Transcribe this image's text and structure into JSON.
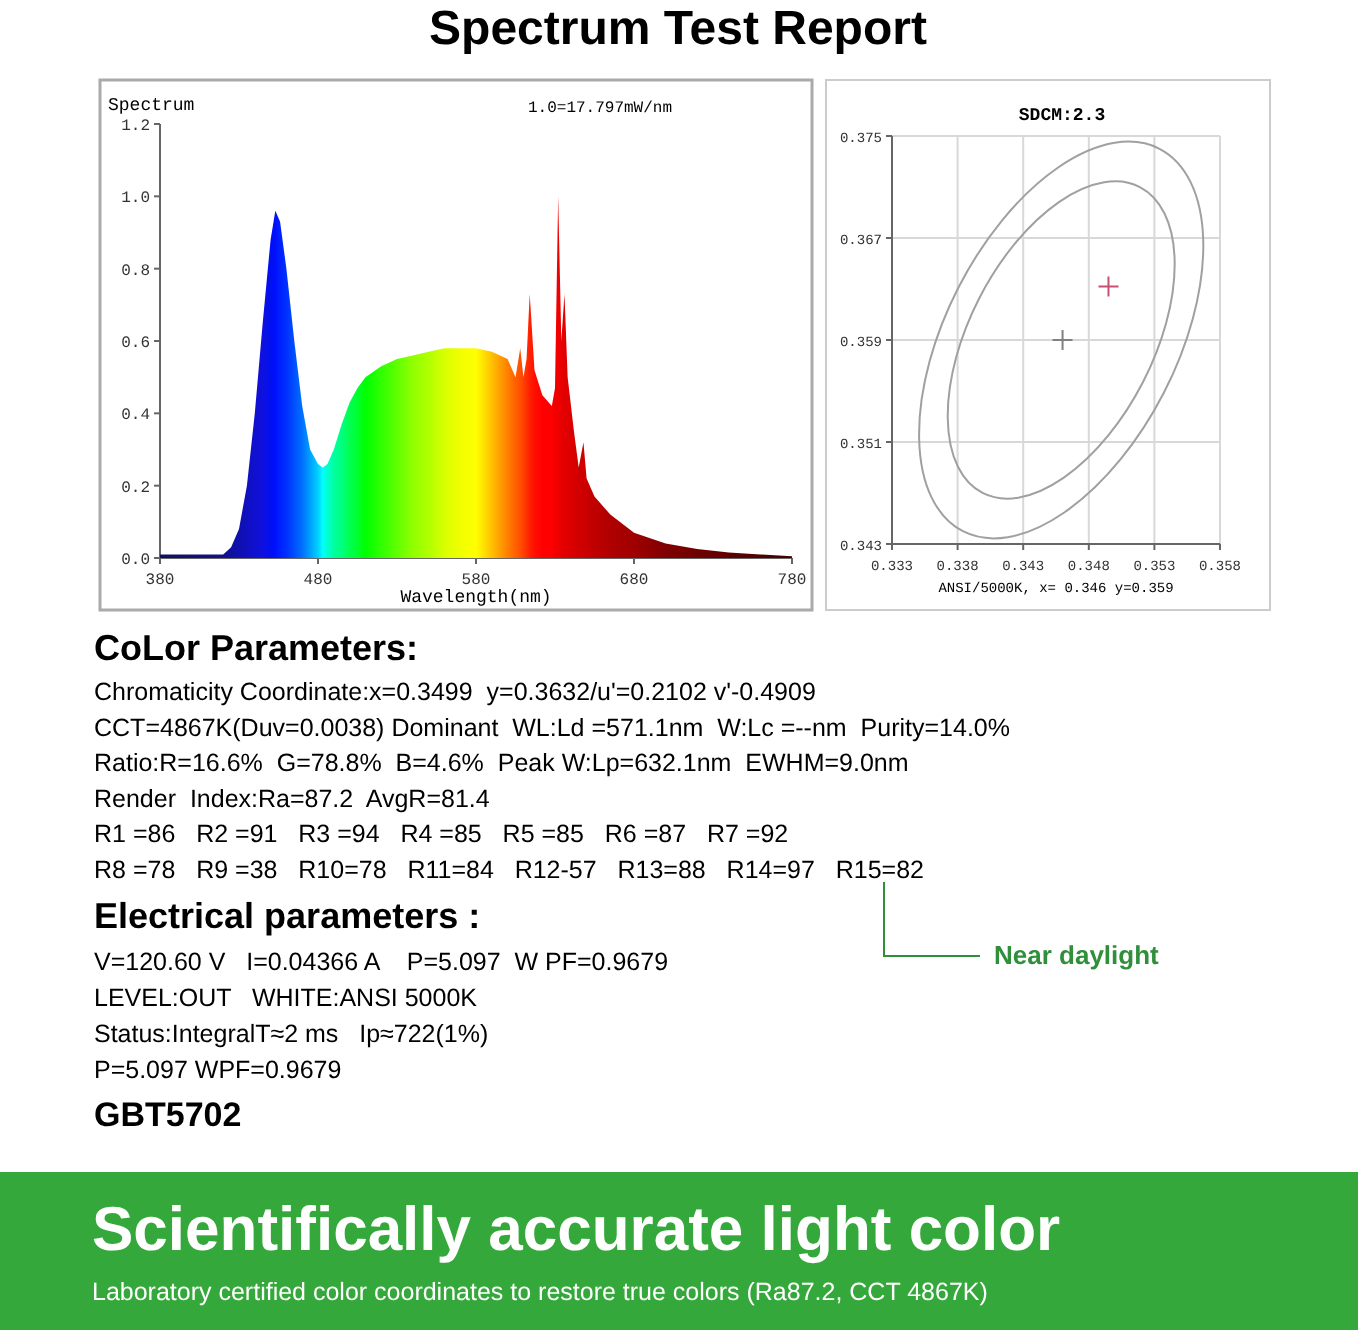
{
  "chart_data": [
    {
      "type": "area",
      "title": "Spectrum Test Report",
      "ylabel": "Spectrum",
      "xlabel": "Wavelength(nm)",
      "annotations": [
        "1.0=17.797mW/nm"
      ],
      "xlim": [
        380,
        780
      ],
      "ylim": [
        0,
        1.2
      ],
      "xticks": [
        380,
        480,
        580,
        680,
        780
      ],
      "yticks": [
        {
          "value": 0,
          "label": "0.0"
        },
        0.2,
        0.4,
        0.6,
        0.8,
        {
          "value": 1,
          "label": "1.0"
        },
        1.2
      ],
      "grid": false,
      "x": [
        380,
        400,
        420,
        425,
        430,
        435,
        440,
        445,
        450,
        453,
        456,
        460,
        465,
        470,
        475,
        480,
        483,
        486,
        490,
        495,
        500,
        505,
        510,
        520,
        530,
        540,
        550,
        560,
        570,
        580,
        590,
        600,
        605,
        608,
        610,
        612,
        614,
        617,
        622,
        628,
        630,
        632,
        634,
        636,
        638,
        642,
        645,
        648,
        650,
        655,
        665,
        680,
        700,
        720,
        740,
        760,
        780
      ],
      "series": [
        {
          "values": [
            0.01,
            0.01,
            0.01,
            0.03,
            0.08,
            0.2,
            0.4,
            0.65,
            0.88,
            0.96,
            0.93,
            0.8,
            0.6,
            0.42,
            0.3,
            0.26,
            0.25,
            0.26,
            0.3,
            0.37,
            0.43,
            0.47,
            0.5,
            0.53,
            0.55,
            0.56,
            0.57,
            0.58,
            0.58,
            0.58,
            0.57,
            0.55,
            0.5,
            0.58,
            0.5,
            0.55,
            0.73,
            0.52,
            0.45,
            0.42,
            0.47,
            1.0,
            0.6,
            0.73,
            0.5,
            0.35,
            0.25,
            0.32,
            0.22,
            0.17,
            0.12,
            0.07,
            0.04,
            0.025,
            0.015,
            0.01,
            0.005
          ],
          "colors": [
            "#101060",
            "#101070",
            "#101090",
            "#1010a0",
            "#1010b0",
            "#1010c0",
            "#1010d0",
            "#1010e0",
            "#0010f0",
            "#0010ff",
            "#0020ff",
            "#0030ff",
            "#0050ff",
            "#0070ff",
            "#00a0ff",
            "#00d0ff",
            "#00ffff",
            "#00ffd0",
            "#00ffa0",
            "#00ff80",
            "#00ff50",
            "#00ff30",
            "#00ff00",
            "#30ff00",
            "#60ff00",
            "#90ff00",
            "#b0ff00",
            "#d8ff00",
            "#f0ff00",
            "#ffff00",
            "#ffc000",
            "#ff8000",
            "#ff6000",
            "#ff5000",
            "#ff4000",
            "#ff3000",
            "#ff2000",
            "#ff1000",
            "#ff0000",
            "#ff0000",
            "#f00000",
            "#f00000",
            "#e80000",
            "#e00000",
            "#e00000",
            "#d80000",
            "#d00000",
            "#d00000",
            "#c80000",
            "#c00000",
            "#b00000",
            "#a00000",
            "#800000",
            "#700000",
            "#600000",
            "#500000",
            "#400000"
          ]
        }
      ]
    },
    {
      "type": "scatter",
      "title": "SDCM:2.3",
      "xlabel": "ANSI/5000K, x= 0.346 y=0.359",
      "xlim": [
        0.333,
        0.358
      ],
      "ylim": [
        0.343,
        0.375
      ],
      "xticks": [
        0.333,
        0.338,
        0.343,
        0.348,
        0.353,
        0.358
      ],
      "yticks": [
        0.343,
        0.351,
        0.359,
        0.367,
        0.375
      ],
      "grid": true,
      "series": [
        {
          "marker": "cross",
          "color": "#808080",
          "x": [
            0.346
          ],
          "values": [
            0.359
          ]
        },
        {
          "marker": "cross",
          "color": "#c8506e",
          "x": [
            0.3495
          ],
          "values": [
            0.3632
          ]
        }
      ]
    },
    {
      "type": "other",
      "title": "CoLor Parameters:",
      "annotations": [
        "Chromaticity Coordinate:x=0.3499  y=0.3632/u'=0.2102 v'-0.4909",
        "CCT=4867K(Duv=0.0038) Dominant  WL:Ld =571.1nm  W:Lc =--nm  Purity=14.0%",
        "Ratio:R=16.6%  G=78.8%  B=4.6%  Peak W:Lp=632.1nm  EWHM=9.0nm",
        "Render  Index:Ra=87.2  AvgR=81.4",
        "R1 =86   R2 =91   R3 =94   R4 =85   R5 =85   R6 =87   R7 =92",
        "R8 =78   R9 =38   R10=78   R11=84   R12-57   R13=88   R14=97   R15=82",
        "Near daylight"
      ]
    },
    {
      "type": "other",
      "title": "Electrical parameters :",
      "annotations": [
        "V=120.60 V   I=0.04366 A    P=5.097  W PF=0.9679",
        "LEVEL:OUT   WHITE:ANSI 5000K",
        "Status:IntegralT≈2 ms   Ip≈722(1%)",
        "P=5.097 WPF=0.9679",
        "GBT5702"
      ]
    },
    {
      "type": "other",
      "title": "Scientifically accurate light color",
      "subtitle": "Laboratory certified color coordinates to restore true colors (Ra87.2, CCT 4867K)"
    }
  ]
}
